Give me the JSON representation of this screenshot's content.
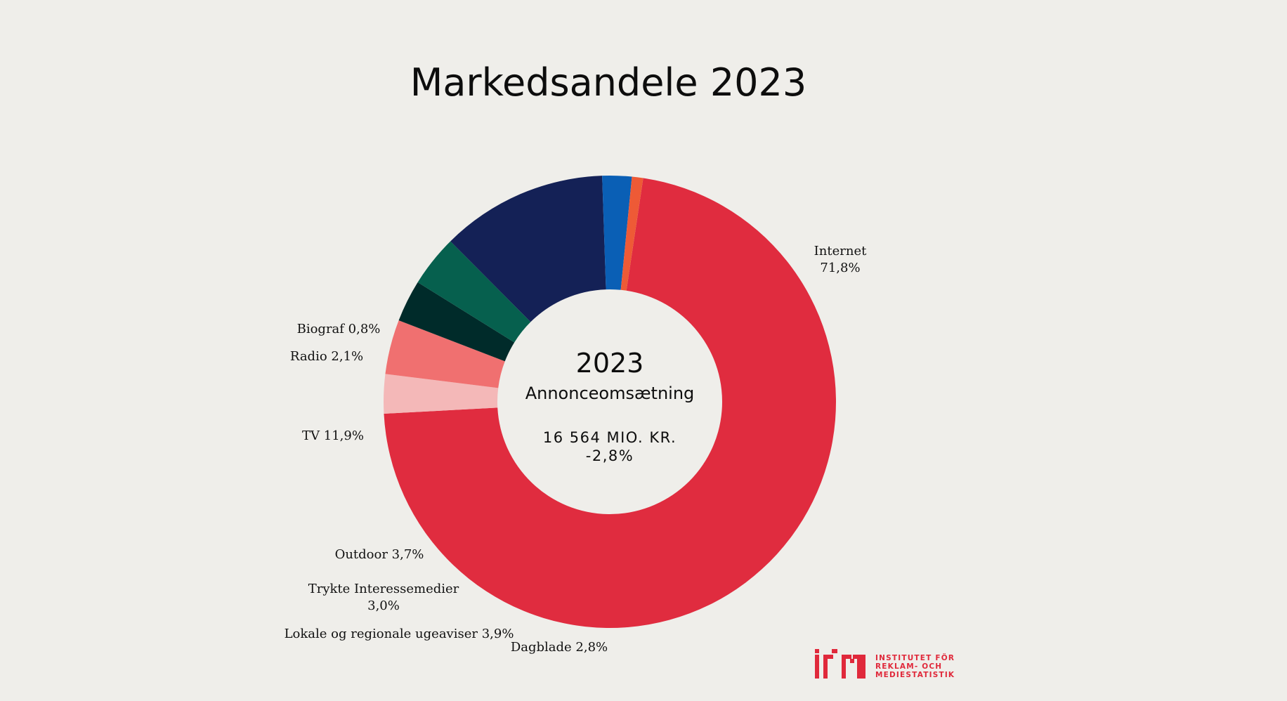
{
  "chart_data": {
    "type": "pie",
    "title": "Markedsandele 2023",
    "center": {
      "year": "2023",
      "subtitle": "Annonceomsætning",
      "total": "16 564 MIO. KR.",
      "change": "-2,8%"
    },
    "slices": [
      {
        "label_lines": [
          "Internet",
          "71,8%"
        ],
        "value": 71.8,
        "color": "#e02c3f"
      },
      {
        "label_lines": [
          "Dagblade 2,8%"
        ],
        "value": 2.8,
        "color": "#f4b8b8"
      },
      {
        "label_lines": [
          "Lokale og regionale ugeaviser 3,9%"
        ],
        "value": 3.9,
        "color": "#f07070"
      },
      {
        "label_lines": [
          "Trykte Interessemedier",
          "3,0%"
        ],
        "value": 3.0,
        "color": "#002b2a"
      },
      {
        "label_lines": [
          "Outdoor 3,7%"
        ],
        "value": 3.7,
        "color": "#06604e"
      },
      {
        "label_lines": [
          "TV 11,9%"
        ],
        "value": 11.9,
        "color": "#142156"
      },
      {
        "label_lines": [
          "Radio 2,1%"
        ],
        "value": 2.1,
        "color": "#0a5fb5"
      },
      {
        "label_lines": [
          "Biograf 0,8%"
        ],
        "value": 0.8,
        "color": "#ee5a36"
      }
    ]
  },
  "logo": {
    "lines": [
      "INSTITUTET FÖR",
      "REKLAM- OCH",
      "MEDIESTATISTIK"
    ],
    "color": "#e0293b"
  }
}
